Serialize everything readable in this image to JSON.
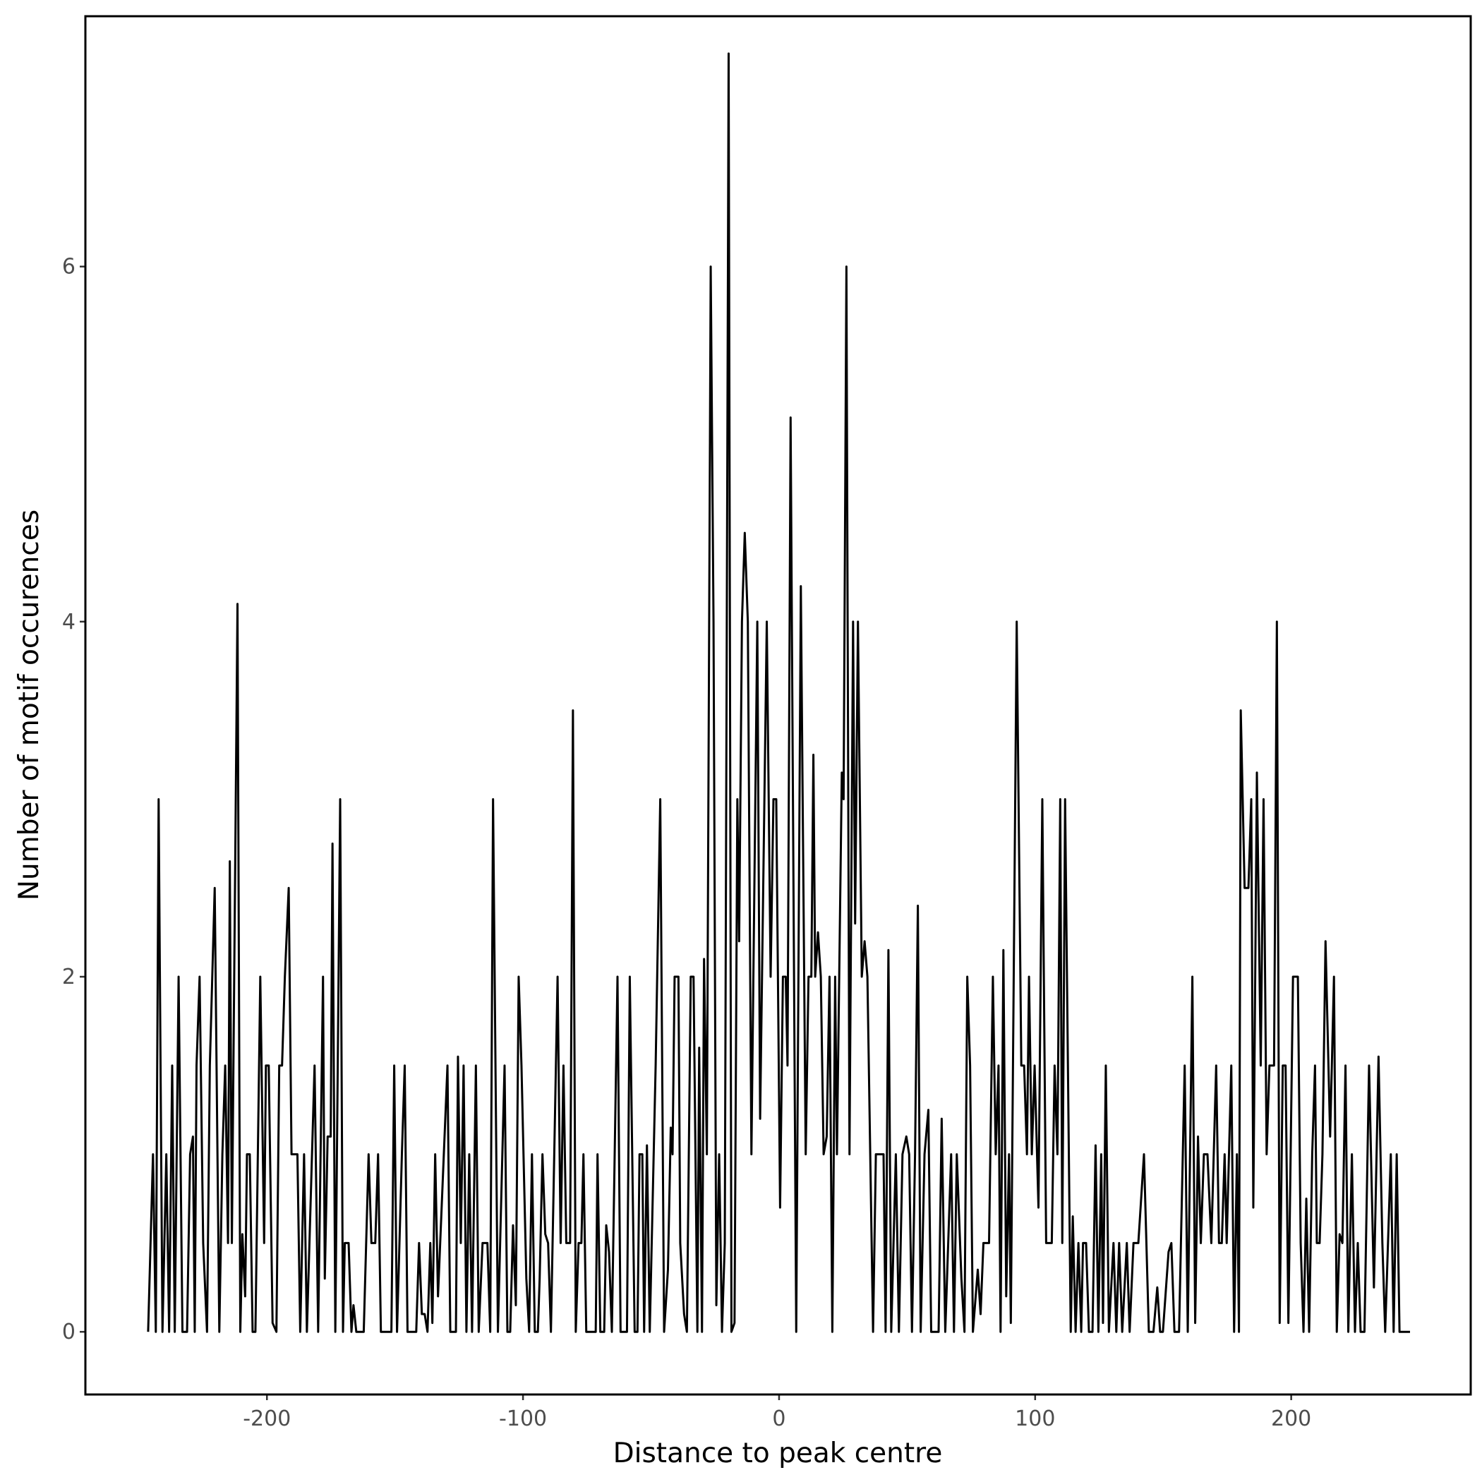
{
  "chart_data": {
    "type": "line",
    "xlabel": "Distance to peak centre",
    "ylabel": "Number of motif occurences",
    "xlim": [
      -270.9,
      270.1
    ],
    "ylim": [
      -0.353,
      7.41
    ],
    "xticks": [
      -200,
      -100,
      0,
      100,
      200
    ],
    "yticks": [
      0,
      2,
      4,
      6
    ],
    "grid": false,
    "color": "#000000",
    "x": [
      -246.4,
      -244.5,
      -243.4,
      -242.3,
      -240.8,
      -239.3,
      -238.2,
      -237,
      -236,
      -234.5,
      -233,
      -231.2,
      -230,
      -228.9,
      -228.2,
      -227.5,
      -226.3,
      -224.9,
      -223.4,
      -222.3,
      -220.4,
      -218.6,
      -217.4,
      -216.3,
      -215.2,
      -214.5,
      -213.7,
      -211.5,
      -210.4,
      -209.6,
      -208.5,
      -207.8,
      -206.7,
      -205.6,
      -204.5,
      -202.6,
      -201.1,
      -200.4,
      -199.3,
      -197.8,
      -196.3,
      -195.2,
      -194.1,
      -193,
      -191.5,
      -190.4,
      -188.1,
      -187,
      -185.5,
      -184.4,
      -181.4,
      -180,
      -178.1,
      -177.4,
      -176.3,
      -175.1,
      -174.4,
      -173.3,
      -171.4,
      -170.3,
      -169.6,
      -168.1,
      -167,
      -166.2,
      -165.1,
      -162.2,
      -160.3,
      -159.2,
      -157.7,
      -156.6,
      -155.5,
      -151.4,
      -150.3,
      -149.2,
      -147.3,
      -146.2,
      -145.1,
      -141.7,
      -140.6,
      -139.5,
      -138.4,
      -137.3,
      -136.2,
      -135.4,
      -134.3,
      -133.2,
      -129.5,
      -128.4,
      -126.2,
      -125.4,
      -124.3,
      -123.2,
      -122.1,
      -121,
      -119.9,
      -118.4,
      -117.3,
      -115.8,
      -113.9,
      -112.8,
      -111.7,
      -109.8,
      -107.2,
      -106.1,
      -105,
      -103.9,
      -102.8,
      -101.7,
      -100.6,
      -98.7,
      -97.6,
      -96.5,
      -95.4,
      -94.2,
      -93.5,
      -92.4,
      -91.3,
      -90.2,
      -89.1,
      -86.5,
      -85.3,
      -84.2,
      -83.1,
      -81.6,
      -80.5,
      -79.4,
      -78.3,
      -77.2,
      -76.4,
      -75.3,
      -71.6,
      -70.9,
      -69.8,
      -68.3,
      -67.5,
      -66.4,
      -65.3,
      -63.1,
      -61.9,
      -59.4,
      -58.3,
      -56.4,
      -55.3,
      -54.5,
      -53.4,
      -52.7,
      -51.6,
      -50.5,
      -48.2,
      -46.4,
      -44.9,
      -43.4,
      -42.3,
      -41.6,
      -40.8,
      -39.3,
      -38.6,
      -37.1,
      -36,
      -34.5,
      -33.4,
      -31.9,
      -31.2,
      -30.1,
      -29.3,
      -28.2,
      -26.7,
      -25.6,
      -24.5,
      -23.4,
      -22.3,
      -21.2,
      -19.7,
      -18.6,
      -17.4,
      -16.3,
      -15.6,
      -14.5,
      -13.4,
      -12.2,
      -10.8,
      -8.5,
      -7.4,
      -4.8,
      -3.3,
      -2.2,
      -1.1,
      0.4,
      1.5,
      2.6,
      3.3,
      4.5,
      6.7,
      8.5,
      10.4,
      11.5,
      12.6,
      13.4,
      14.1,
      15.2,
      16.3,
      17.4,
      18.6,
      19.7,
      20.8,
      21.9,
      22.6,
      24.5,
      25.2,
      26.3,
      27.5,
      28.9,
      29.7,
      30.8,
      32.3,
      33.4,
      34.5,
      36.7,
      37.8,
      40.8,
      41.6,
      42.7,
      43.8,
      45.6,
      46.8,
      48.2,
      49.7,
      50.8,
      51.9,
      53.1,
      54.2,
      55.3,
      56.8,
      58.3,
      59.4,
      62.3,
      63.5,
      64.9,
      67.2,
      68.3,
      69.4,
      71.2,
      72.4,
      73.5,
      74.6,
      75.7,
      77.6,
      78.7,
      79.8,
      82,
      83.5,
      84.6,
      85.7,
      86.5,
      87.6,
      88.7,
      89.8,
      90.5,
      92.8,
      94.6,
      95.7,
      96.8,
      97.6,
      98.7,
      99.8,
      101.3,
      102.8,
      104.3,
      106.5,
      107.6,
      108.7,
      109.8,
      110.6,
      111.7,
      113.9,
      114.7,
      115.8,
      116.9,
      118,
      118.7,
      119.9,
      121,
      122.4,
      123.6,
      124.7,
      125.8,
      126.5,
      127.6,
      128.8,
      130.6,
      131.7,
      132.8,
      134,
      135.8,
      136.9,
      138.4,
      140.3,
      142.5,
      144.4,
      146.2,
      147.7,
      148.8,
      149.9,
      152.1,
      153.2,
      154.4,
      156.2,
      158.4,
      159.6,
      161.4,
      162.5,
      163.6,
      164.7,
      165.9,
      167.3,
      168.8,
      170.7,
      171.8,
      172.9,
      174,
      174.8,
      176.6,
      177.7,
      178.8,
      179.6,
      180.3,
      181.8,
      183.3,
      184.4,
      185.2,
      186.6,
      188.1,
      189.2,
      190.4,
      191.5,
      193.3,
      194.4,
      195.5,
      196.7,
      197.8,
      198.9,
      200.7,
      202.6,
      203.7,
      204.8,
      205.9,
      207,
      208.2,
      209.3,
      210,
      211.1,
      212.2,
      213.4,
      215.2,
      216.7,
      217.8,
      218.9,
      220,
      221.2,
      222.3,
      223.7,
      224.9,
      226,
      227.1,
      228.6,
      230.4,
      232.3,
      234.1,
      235.6,
      236.7,
      238.9,
      240,
      241.2,
      242.3,
      246.4
    ],
    "values": [
      0,
      1,
      0,
      3,
      0,
      1,
      0,
      1.5,
      0,
      2,
      0,
      0,
      1,
      1.1,
      0,
      1.5,
      2,
      0.5,
      0,
      1.5,
      2.5,
      0,
      1,
      1.5,
      0.5,
      2.65,
      0.5,
      4.1,
      0,
      0.55,
      0.2,
      1,
      1,
      0,
      0,
      2,
      0.5,
      1.5,
      1.5,
      0.05,
      0,
      1.5,
      1.5,
      2,
      2.5,
      1,
      1,
      0,
      1,
      0,
      1.5,
      0,
      2,
      0.3,
      1.1,
      1.1,
      2.75,
      0,
      3,
      0,
      0.5,
      0.5,
      0,
      0.15,
      0,
      0,
      1,
      0.5,
      0.5,
      1,
      0,
      0,
      1.5,
      0,
      1,
      1.5,
      0,
      0,
      0.5,
      0.1,
      0.1,
      0,
      0.5,
      0.05,
      1,
      0.2,
      1.5,
      0,
      0,
      1.55,
      0.5,
      1.5,
      0,
      1,
      0,
      1.5,
      0,
      0.5,
      0.5,
      0,
      3,
      0,
      1.5,
      0,
      0,
      0.6,
      0.15,
      2,
      1.5,
      0.3,
      0,
      1,
      0,
      0,
      0.3,
      1,
      0.55,
      0.5,
      0,
      2,
      0.5,
      1.5,
      0.5,
      0.5,
      3.5,
      0,
      0.5,
      0.5,
      1,
      0,
      0,
      1,
      0,
      0,
      0.6,
      0.45,
      0,
      2,
      0,
      0,
      2,
      0,
      0,
      1,
      1,
      0,
      1.05,
      0,
      1.5,
      3,
      0,
      0.35,
      1.15,
      1,
      2,
      2,
      0.5,
      0.1,
      0,
      2,
      2,
      0,
      1.6,
      0,
      2.1,
      1,
      6,
      4,
      0.15,
      1,
      0,
      0.5,
      7.2,
      0,
      0.05,
      3,
      2.2,
      4,
      4.5,
      4,
      1,
      4,
      1.2,
      4,
      2,
      3,
      3,
      0.7,
      2,
      2,
      1.5,
      5.15,
      0,
      4.2,
      1,
      2,
      2,
      3.25,
      2,
      2.25,
      2,
      1,
      1.1,
      2,
      0,
      2,
      1,
      3.15,
      3,
      6,
      1,
      4,
      2.3,
      4,
      2,
      2.2,
      2,
      0,
      1,
      1,
      0,
      2.15,
      0,
      1,
      0,
      1,
      1.1,
      1,
      0,
      1,
      2.4,
      0,
      1,
      1.25,
      0,
      0,
      1.2,
      0,
      1,
      0,
      1,
      0.3,
      0,
      2,
      1.5,
      0,
      0.35,
      0.1,
      0.5,
      0.5,
      2,
      1,
      1.5,
      0,
      2.15,
      0.2,
      1,
      0.05,
      4,
      1.5,
      1.5,
      1,
      2,
      1,
      1.5,
      0.7,
      3,
      0.5,
      0.5,
      1.5,
      1,
      3,
      0.5,
      3,
      0,
      0.65,
      0,
      0.5,
      0,
      0.5,
      0.5,
      0,
      0,
      1.05,
      0,
      1,
      0.05,
      1.5,
      0,
      0.5,
      0,
      0.5,
      0,
      0.5,
      0,
      0.5,
      0.5,
      1,
      0,
      0,
      0.25,
      0,
      0,
      0.45,
      0.5,
      0,
      0,
      1.5,
      0,
      2,
      0.05,
      1.1,
      0.5,
      1,
      1,
      0.5,
      1.5,
      0.5,
      0.5,
      1,
      0.5,
      1.5,
      0,
      1,
      0,
      3.5,
      2.5,
      2.5,
      3,
      0.7,
      3.15,
      1.5,
      3,
      1,
      1.5,
      1.5,
      4,
      0.05,
      1.5,
      1.5,
      0.05,
      2,
      2,
      0.5,
      0,
      0.75,
      0,
      1,
      1.5,
      0.5,
      0.5,
      1,
      2.2,
      1.1,
      2,
      0,
      0.55,
      0.5,
      1.5,
      0,
      1,
      0,
      0.5,
      0,
      0,
      1.5,
      0.25,
      1.55,
      0.5,
      0,
      1,
      0,
      1,
      0,
      0
    ]
  }
}
